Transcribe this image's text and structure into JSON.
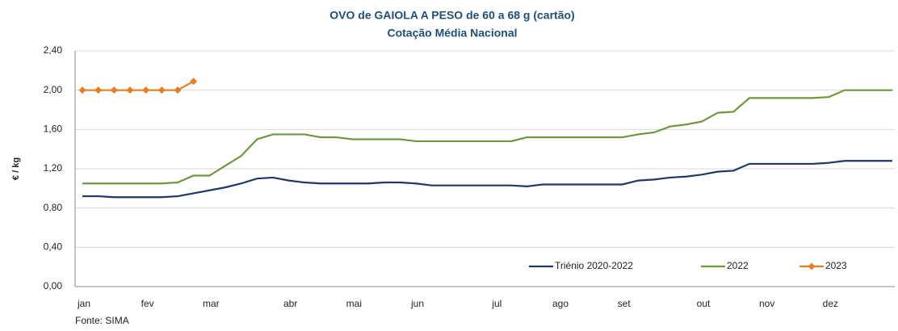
{
  "chart_data": {
    "type": "line",
    "title": "OVO de GAIOLA A PESO de 60 a 68 g (cartão)",
    "subtitle": "Cotação Média Nacional",
    "y_label": "€ / kg",
    "source": "Fonte: SIMA",
    "categories": [
      "jan",
      null,
      null,
      null,
      "fev",
      null,
      null,
      null,
      "mar",
      null,
      null,
      null,
      null,
      "abr",
      null,
      null,
      null,
      "mai",
      null,
      null,
      null,
      "jun",
      null,
      null,
      null,
      null,
      "jul",
      null,
      null,
      null,
      "ago",
      null,
      null,
      null,
      "set",
      null,
      null,
      null,
      null,
      "out",
      null,
      null,
      null,
      "nov",
      null,
      null,
      null,
      "dez",
      null,
      null,
      null,
      null
    ],
    "series": [
      {
        "name": "Triénio 2020-2022",
        "color": "#203864",
        "marker": false,
        "values": [
          0.92,
          0.92,
          0.91,
          0.91,
          0.91,
          0.91,
          0.92,
          0.95,
          0.98,
          1.01,
          1.05,
          1.1,
          1.11,
          1.08,
          1.06,
          1.05,
          1.05,
          1.05,
          1.05,
          1.06,
          1.06,
          1.05,
          1.03,
          1.03,
          1.03,
          1.03,
          1.03,
          1.03,
          1.02,
          1.04,
          1.04,
          1.04,
          1.04,
          1.04,
          1.04,
          1.08,
          1.09,
          1.11,
          1.12,
          1.14,
          1.17,
          1.18,
          1.25,
          1.25,
          1.25,
          1.25,
          1.25,
          1.26,
          1.28,
          1.28,
          1.28,
          1.28
        ]
      },
      {
        "name": "2022",
        "color": "#70963c",
        "marker": false,
        "values": [
          1.05,
          1.05,
          1.05,
          1.05,
          1.05,
          1.05,
          1.06,
          1.13,
          1.13,
          1.23,
          1.33,
          1.5,
          1.55,
          1.55,
          1.55,
          1.52,
          1.52,
          1.5,
          1.5,
          1.5,
          1.5,
          1.48,
          1.48,
          1.48,
          1.48,
          1.48,
          1.48,
          1.48,
          1.52,
          1.52,
          1.52,
          1.52,
          1.52,
          1.52,
          1.52,
          1.55,
          1.57,
          1.63,
          1.65,
          1.68,
          1.77,
          1.78,
          1.92,
          1.92,
          1.92,
          1.92,
          1.92,
          1.93,
          2.0,
          2.0,
          2.0,
          2.0
        ]
      },
      {
        "name": "2023",
        "color": "#e67e22",
        "marker": true,
        "values": [
          2.0,
          2.0,
          2.0,
          2.0,
          2.0,
          2.0,
          2.0,
          2.09,
          null,
          null,
          null,
          null,
          null,
          null,
          null,
          null,
          null,
          null,
          null,
          null,
          null,
          null,
          null,
          null,
          null,
          null,
          null,
          null,
          null,
          null,
          null,
          null,
          null,
          null,
          null,
          null,
          null,
          null,
          null,
          null,
          null,
          null,
          null,
          null,
          null,
          null,
          null,
          null,
          null,
          null,
          null,
          null
        ]
      }
    ],
    "ylim": [
      0,
      2.4
    ],
    "yticks": [
      {
        "value": 0,
        "label": "0,00"
      },
      {
        "value": 0.4,
        "label": "0,40"
      },
      {
        "value": 0.8,
        "label": "0,80"
      },
      {
        "value": 1.2,
        "label": "1,20"
      },
      {
        "value": 1.6,
        "label": "1,60"
      },
      {
        "value": 2,
        "label": "2,00"
      },
      {
        "value": 2.4,
        "label": "2,40"
      }
    ],
    "grid": true,
    "legend": "bottom-right"
  }
}
